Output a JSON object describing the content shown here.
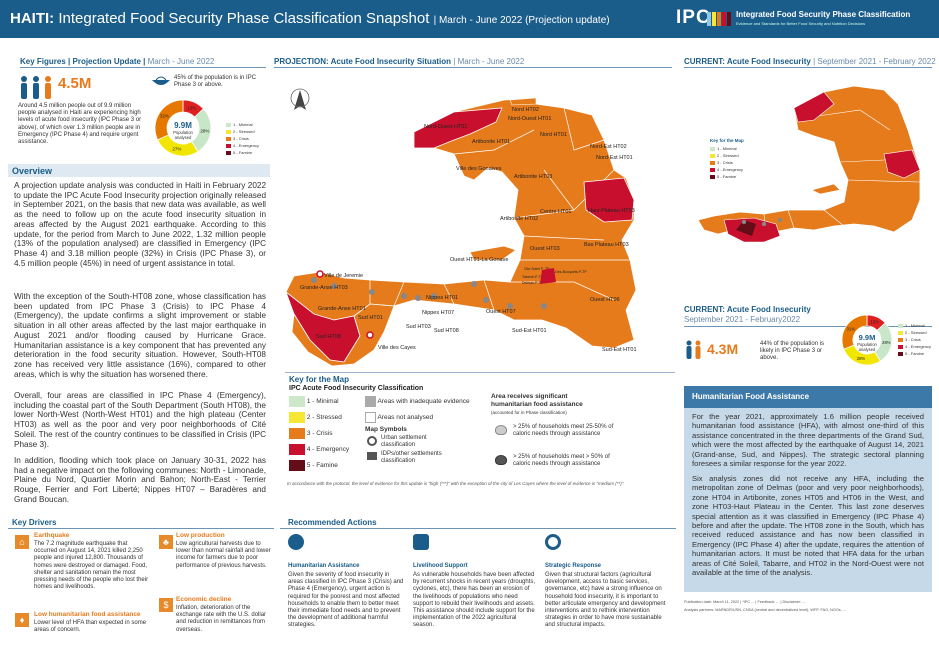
{
  "header": {
    "country": "HAITI:",
    "title": "Integrated Food Security Phase Classification Snapshot",
    "period": "| March - June 2022 (Projection update)",
    "ipc_logo": "IPC",
    "ipc_name": "Integrated Food Security Phase Classification",
    "ipc_tagline": "Evidence and Standards for Better Food Security and Nutrition Decisions"
  },
  "key_figures": {
    "title": "Key Figures",
    "subtitle": "| Projection Update |",
    "date": "March - June 2022",
    "figure": "4.5M",
    "pct_text": "45% of the population is in IPC Phase 3 or above.",
    "description": "Around 4.5 million people out of 9.9 million people analysed in Haiti are experiencing high levels of acute food insecurity (IPC Phase 3 or above), of which over 1.3 million people are in Emergency (IPC Phase 4) and require urgent assistance.",
    "donut_center": "9.9M",
    "donut_label": "Population analysed",
    "donut_slices": [
      {
        "label": "13%",
        "value": 13,
        "color": "#e02020"
      },
      {
        "label": "28%",
        "value": 28,
        "color": "#c8e6c8"
      },
      {
        "label": "27%",
        "value": 27,
        "color": "#f2e600"
      },
      {
        "label": "32%",
        "value": 32,
        "color": "#e67800"
      }
    ],
    "legend": [
      "1 - Minimal",
      "2 - Stressed",
      "3 - Crisis",
      "4 - Emergency",
      "5 - Famine"
    ]
  },
  "overview": {
    "title": "Overview",
    "paragraphs": [
      "A projection update analysis was conducted in Haiti in February 2022 to update the IPC Acute Food Insecurity projection originally released in September 2021, on the basis that new data was available, as well as the need to follow up on the acute food insecurity situation in areas affected by the August 2021 earthquake. According to this update, for the period from March to June 2022, 1.32 million people (13% of the population analysed) are classified in Emergency (IPC Phase 4) and 3.18 million people (32%) in Crisis (IPC Phase 3), or 4.5 million people (45%) in need of urgent assistance in total.",
      "With the exception of the South-HT08 zone, whose classification has been updated from IPC Phase 3 (Crisis) to IPC Phase 4 (Emergency), the update confirms a slight improvement or stable situation in all other areas affected by the last major earthquake in August 2021 and/or flooding caused by Hurricane Grace. Humanitarian assistance is a key component that has prevented any deterioration in the food security situation. However, South-HT08 zone has received very little assistance (16%), compared to other areas, which is why the situation has worsened there.",
      "Overall, four areas are classified in IPC Phase 4 (Emergency), including the coastal part of the South Department (South HT08), the lower North-West (North-West HT01) and the high plateau (Center HT03) as well as the poor and very poor neighborhoods of Cité Soleil. The rest of the country continues to be classified in Crisis (IPC Phase 3).",
      "In addition, flooding which took place on January 30-31, 2022 has had a negative impact on the following communes: North - Limonade, Plaine du Nord, Quartier Morin and Bahon; North-East - Terrier Rouge, Ferrier and Fort Liberté; Nippes HT07 – Baradères and Grand Boucan."
    ]
  },
  "projection_map": {
    "title": "PROJECTION: Acute Food Insecurity Situation",
    "date": "| March - June 2022",
    "labels": [
      "Nord-Ouest HT01",
      "Nord HT02",
      "Nord-Ouest HT01",
      "Nord HT01",
      "Artibonite HT01",
      "Nord-Est HT02",
      "Nord-Est HT01",
      "Ville des Gonaives",
      "Artibonite HT03",
      "Haut Plateau HT03",
      "Artibonite HT02",
      "Centre HT01",
      "Bas Plateau HT03",
      "Ouest HT03",
      "Ouest HT01-La Gonave",
      "Ville de Jeremie",
      "Grande-Anse HT03",
      "Nippes HT01",
      "Grande-Anse HT01",
      "Ouest HT06",
      "Sud HT01",
      "Nippes HT07",
      "Ouest HT07",
      "Sud HT08",
      "Sud HT03",
      "Sud-Est HT01",
      "Sud HT08",
      "Ville des Cayes",
      "Sud-Est HT01"
    ],
    "small_labels": [
      "Cite Soleil P_TP",
      "Tabarre-P-TP",
      "Delmas-P-TP",
      "Croix-Des-Bouquets-P-TP"
    ]
  },
  "map_key": {
    "title": "Key for the Map",
    "subtitle": "IPC Acute Food Insecurity Classification",
    "phases": [
      {
        "label": "1 - Minimal",
        "color": "#cde8c9"
      },
      {
        "label": "2 - Stressed",
        "color": "#f6e735"
      },
      {
        "label": "3 - Crisis",
        "color": "#e67b1c"
      },
      {
        "label": "4 - Emergency",
        "color": "#c8102e"
      },
      {
        "label": "5 - Famine",
        "color": "#640c18"
      }
    ],
    "inadequate": "Areas with inadequate evidence",
    "not_analysed": "Areas not analysed",
    "symbols_title": "Map Symbols",
    "urban": "Urban settlement classification",
    "idp": "IDPs/other settlements classification",
    "hfa_title": "Area receives significant humanitarian food assistance",
    "hfa_sub": "(accounted for in Phase classification)",
    "hfa_1": "> 25% of households meet 25-50% of caloric needs through assistance",
    "hfa_2": "> 25% of households meet > 50% of caloric needs through assistance",
    "note": "In accordance with the protocol, the level of evidence for this update is \"high (***)\" with the exception of the city of Les Cayes where the level of evidence is \"medium (**)\"."
  },
  "current_map": {
    "title": "CURRENT: Acute Food Insecurity",
    "date": "| September 2021 - February 2022",
    "key_title": "Key for the Map",
    "legend": [
      "1 - Minimal",
      "2 - Stressed",
      "3 - Crisis",
      "4 - Emergency",
      "5 - Famine"
    ]
  },
  "current_figures": {
    "title": "CURRENT: Acute Food Insecurity",
    "date": "September 2021 - February2022",
    "figure": "4.3M",
    "text": "44% of the population is likely in IPC Phase 3 or above.",
    "donut_center": "9.9M",
    "donut_label": "Population analysed",
    "donut_slices": [
      {
        "label": "13%",
        "value": 13,
        "color": "#e02020"
      },
      {
        "label": "28%",
        "value": 28,
        "color": "#c8e6c8"
      },
      {
        "label": "28%",
        "value": 28,
        "color": "#f2e600"
      },
      {
        "label": "31%",
        "value": 31,
        "color": "#e67800"
      }
    ],
    "legend": [
      "1 - Minimal",
      "2 - Stressed",
      "3 - Crisis",
      "4 - Emergency",
      "5 - Famine"
    ]
  },
  "hfa": {
    "title": "Humanitarian Food Assistance",
    "p1": "For the year 2021, approximately 1.6 million people received humanitarian food assistance (HFA), with almost one-third of this assistance concentrated in the three departments of the Grand Sud, which were the most affected by the earthquake of August 14, 2021 (Grand-anse, Sud, and Nippes). The strategic sectoral planning foresees a similar response for the year 2022.",
    "p2": "Six analysis zones did not receive any HFA, including the metropolitan zone of Delmas (poor and very poor neighborhoods), zone HT04 in Artibonite, zones HT05 and HT06 in the West, and zone HT03-Haut Plateau in the Center. This last zone deserves special attention as it was classified in Emergency (IPC Phase 4) before and after the update. The HT08 zone in the South, which has received reduced assistance and has now been classified in Emergency (IPC Phase 4) after the update, requires the attention of humanitarian actors. It must be noted that HFA data for the urban areas of Cité Soleil, Tabarre, and HT02 in the Nord-Ouest were not available at the time of the analysis."
  },
  "publication": {
    "text": "Publication date: March 11, 2022 | *IPC ... | Feedback: ... | Disclaimer: ...",
    "partners": "Analysis partners: MARNDR/USN, CNSA (central and decentralized level), WFP, FAO, NGOs, ..."
  },
  "key_drivers": {
    "title": "Key Drivers",
    "items": [
      {
        "title": "Earthquake",
        "text": "The 7.2 magnitude earthquake that occurred on August 14, 2021 killed 2,250 people and injured 12,800. Thousands of homes were destroyed or damaged. Food, shelter and sanitation remain the most pressing needs of the people who lost their homes and livelihoods."
      },
      {
        "title": "Low humanitarian food assistance",
        "text": "Lower level of HFA than expected in some areas of concern."
      },
      {
        "title": "Low production",
        "text": "Low agricultural harvests due to lower than normal rainfall and lower income for farmers due to poor performance of previous harvests."
      },
      {
        "title": "Economic decline",
        "text": "Inflation, deterioration of the exchange rate with the U.S. dollar and reduction in remittances from overseas."
      }
    ]
  },
  "recommended": {
    "title": "Recommended Actions",
    "items": [
      {
        "title": "Humanitarian Assistance",
        "text": "Given the severity of food insecurity in areas classified in IPC Phase 3 (Crisis) and Phase 4 (Emergency), urgent action is required for the poorest and most affected households to enable them to better meet their immediate food needs and to prevent the development of additional harmful strategies."
      },
      {
        "title": "Livelihood Support",
        "text": "As vulnerable households have been affected by recurrent shocks in recent years (droughts, cyclones, etc), there has been an erosion of the livelihoods of populations who need support to rebuild their livelihoods and assets. This assistance should include support for the implementation of the 2022 agricultural season."
      },
      {
        "title": "Strategic Response",
        "text": "Given that structural factors (agricultural development, access to basic services, governance, etc) have a strong influence on household food insecurity, it is important to better articulate emergency and development interventions and to rethink intervention strategies in order to have more sustainable and structural impacts."
      }
    ]
  }
}
